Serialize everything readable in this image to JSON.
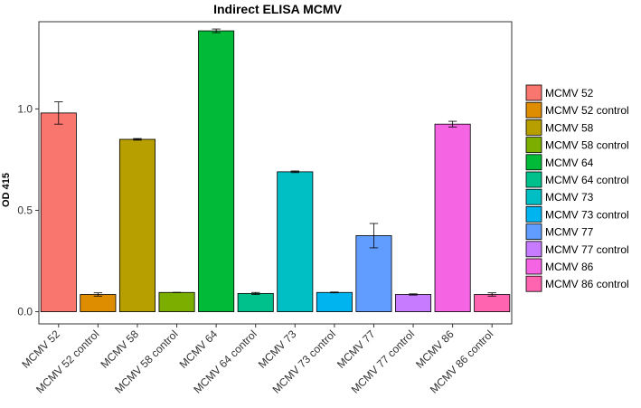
{
  "chart_data": {
    "type": "bar",
    "title": "Indirect ELISA MCMV",
    "xlabel": "",
    "ylabel": "OD 415",
    "ylim": [
      -0.06,
      1.43
    ],
    "yticks": [
      0.0,
      0.5,
      1.0
    ],
    "ytick_labels": [
      "0.0",
      "0.5",
      "1.0"
    ],
    "grid": false,
    "legend_position": "right",
    "categories": [
      "MCMV 52",
      "MCMV 52 control",
      "MCMV 58",
      "MCMV 58 control",
      "MCMV 64",
      "MCMV 64 control",
      "MCMV 73",
      "MCMV 73 control",
      "MCMV 77",
      "MCMV 77 control",
      "MCMV 86",
      "MCMV 86 control"
    ],
    "values": [
      0.98,
      0.085,
      0.85,
      0.095,
      1.385,
      0.09,
      0.69,
      0.095,
      0.375,
      0.085,
      0.925,
      0.085
    ],
    "errors": [
      0.055,
      0.008,
      0.004,
      0.0,
      0.009,
      0.005,
      0.004,
      0.002,
      0.06,
      0.003,
      0.014,
      0.008
    ],
    "colors": [
      "#F8766D",
      "#DE8C00",
      "#B79F00",
      "#7CAE00",
      "#00BA38",
      "#00C08B",
      "#00BFC4",
      "#00B4F0",
      "#619CFF",
      "#C77CFF",
      "#F564E3",
      "#FF64B0"
    ]
  }
}
